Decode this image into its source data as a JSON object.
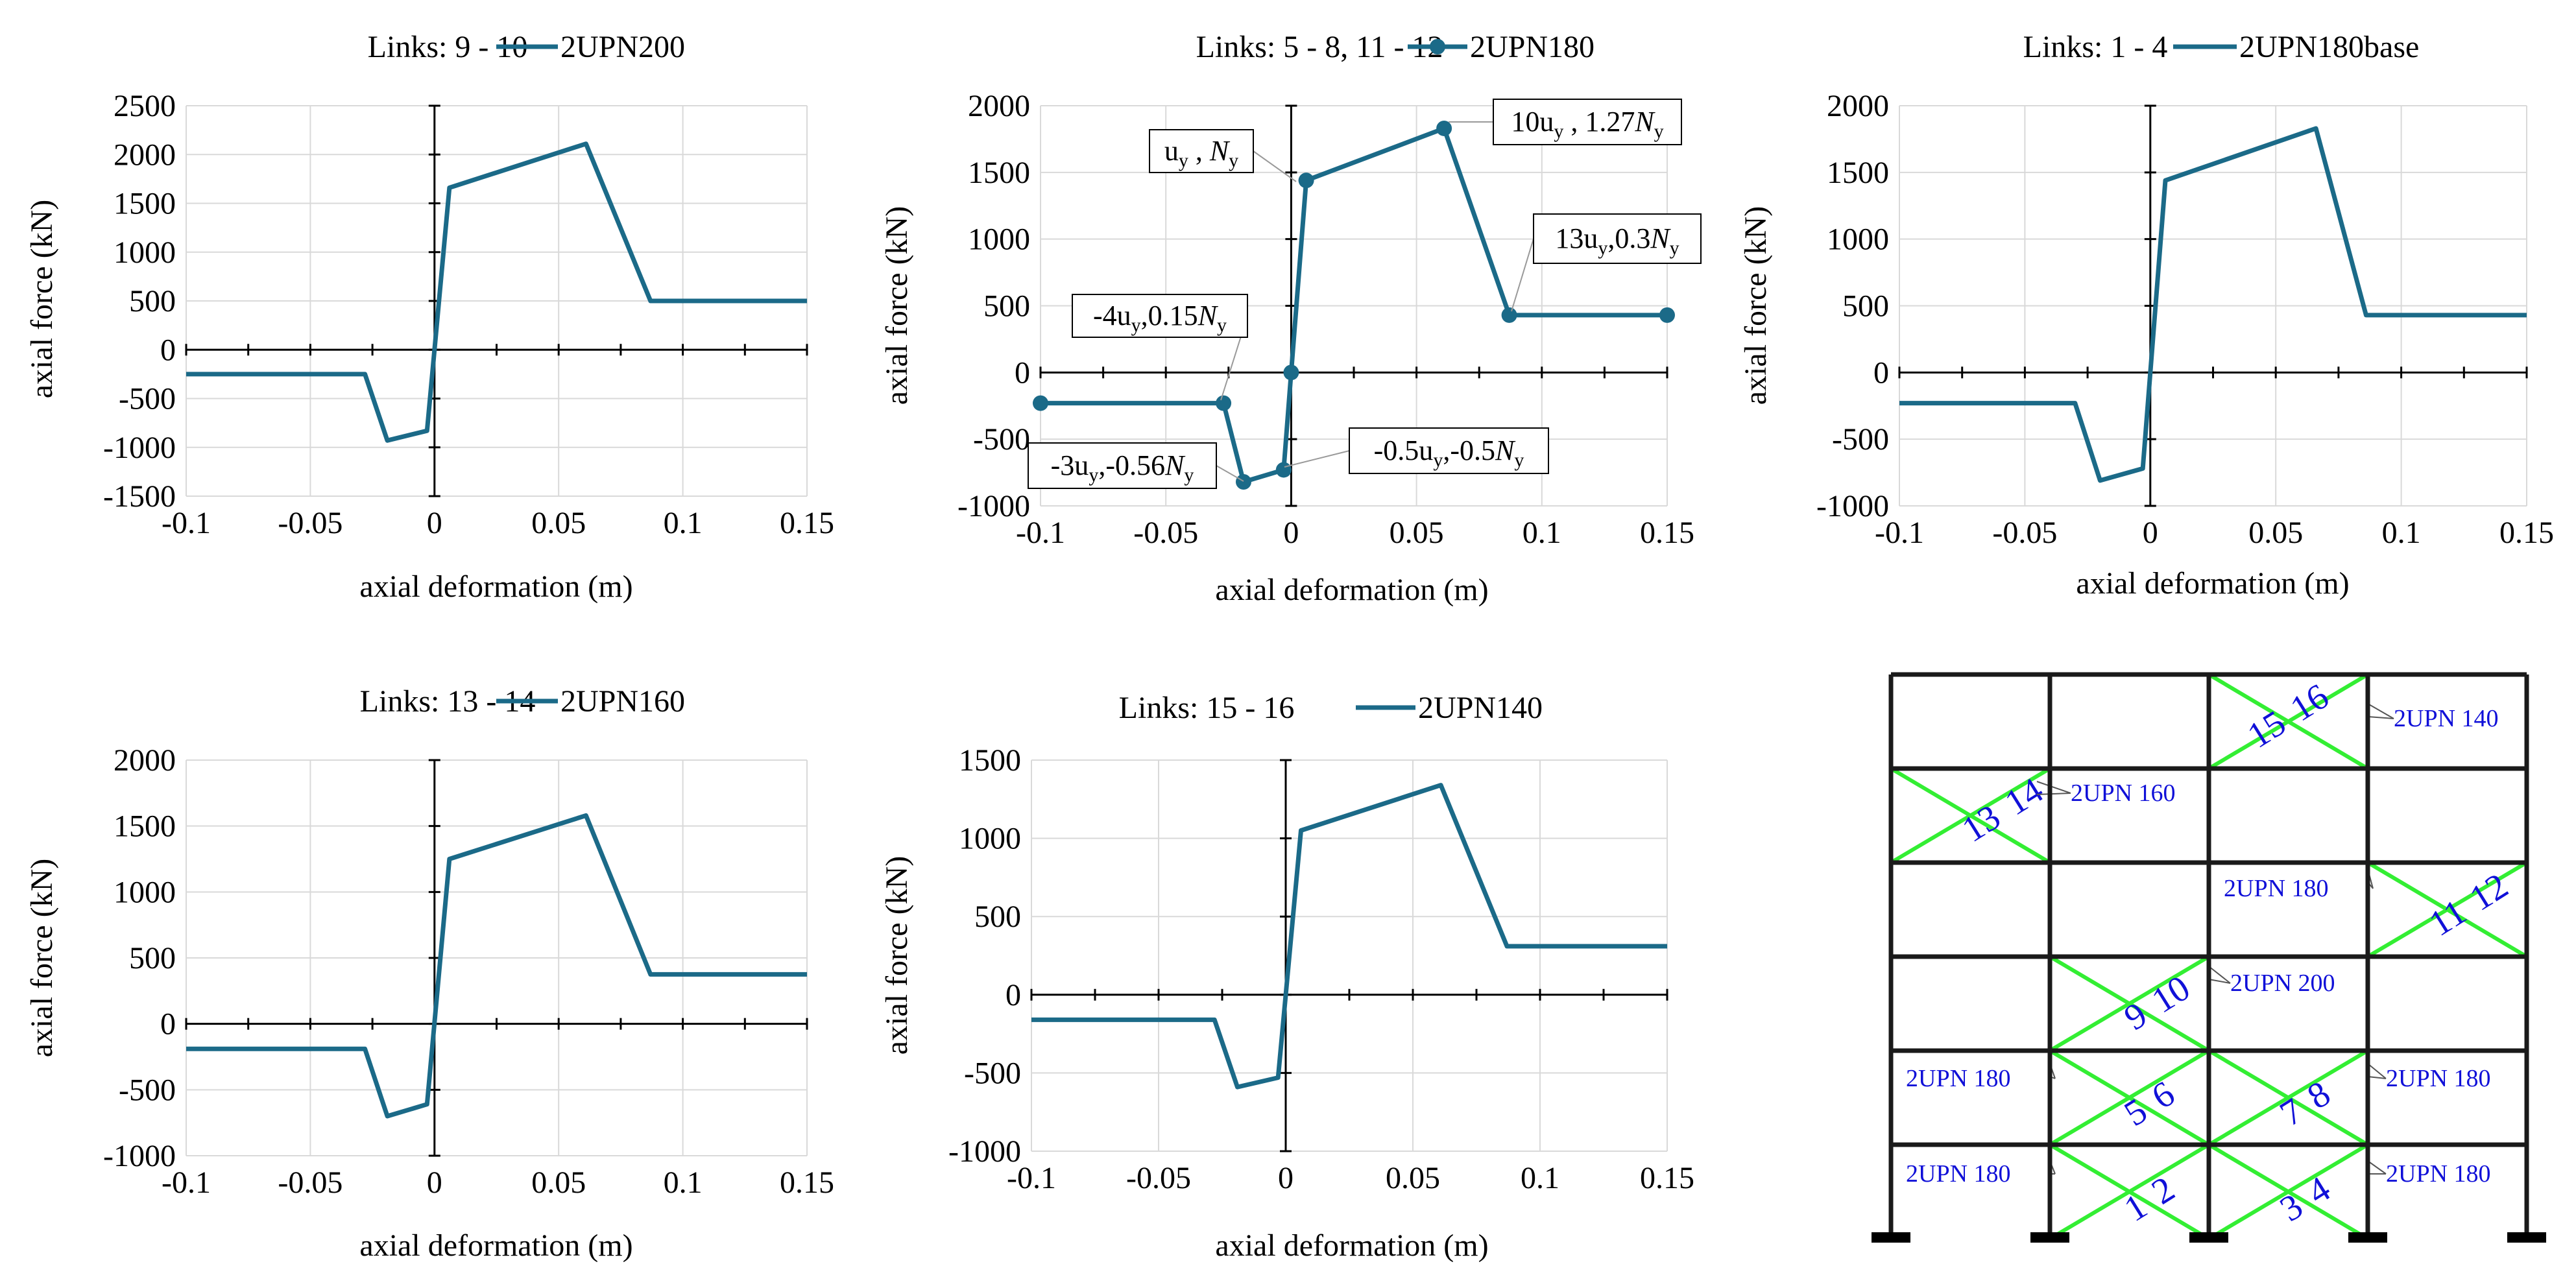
{
  "colors": {
    "series": "#1B6A88",
    "grid": "#d9d9d9",
    "axis": "#000000",
    "frame": "#1a1a1a",
    "brace": "#33ee33",
    "label_blue": "#1010d8",
    "callout_line": "#999999"
  },
  "chart_data": [
    {
      "id": "c1",
      "type": "line",
      "legend_prefix": "Links: 9 - 10",
      "series_name": "2UPN200",
      "markers": false,
      "xlabel": "axial deformation (m)",
      "ylabel": "axial force (kN)",
      "xlim": [
        -0.1,
        0.15
      ],
      "ylim": [
        -1500,
        2500
      ],
      "ytick_step": 500,
      "xticks": [
        "-0.1",
        "-0.05",
        "0",
        "0.05",
        "0.1",
        "0.15"
      ],
      "yticks": [
        "-1500",
        "-1000",
        "-500",
        "0",
        "500",
        "1000",
        "1500",
        "2000",
        "2500"
      ],
      "points": [
        [
          -0.1,
          -250
        ],
        [
          -0.028,
          -250
        ],
        [
          -0.019,
          -930
        ],
        [
          -0.003,
          -830
        ],
        [
          0.006,
          1660
        ],
        [
          0.061,
          2110
        ],
        [
          0.087,
          500
        ],
        [
          0.15,
          500
        ]
      ],
      "annotations": []
    },
    {
      "id": "c2",
      "type": "line",
      "legend_prefix": "Links: 5 - 8, 11 - 12",
      "series_name": "2UPN180",
      "markers": true,
      "xlabel": "axial deformation (m)",
      "ylabel": "axial force (kN)",
      "xlim": [
        -0.1,
        0.15
      ],
      "ylim": [
        -1000,
        2000
      ],
      "ytick_step": 500,
      "xticks": [
        "-0.1",
        "-0.05",
        "0",
        "0.05",
        "0.1",
        "0.15"
      ],
      "yticks": [
        "-1000",
        "-500",
        "0",
        "500",
        "1000",
        "1500",
        "2000"
      ],
      "points": [
        [
          -0.1,
          -230
        ],
        [
          -0.027,
          -230
        ],
        [
          -0.019,
          -820
        ],
        [
          -0.003,
          -730
        ],
        [
          0,
          0
        ],
        [
          0.006,
          1440
        ],
        [
          0.061,
          1830
        ],
        [
          0.087,
          430
        ],
        [
          0.15,
          430
        ]
      ],
      "annotations": [
        {
          "base": "u",
          "sub": "y",
          "mid": " , ",
          "base2": "N",
          "sub2": "y",
          "tail": ""
        },
        {
          "base": "10u",
          "sub": "y",
          "mid": " , 1.27",
          "base2": "N",
          "sub2": "y",
          "tail": ""
        },
        {
          "base": "13u",
          "sub": "y",
          "mid": ",0.3",
          "base2": "N",
          "sub2": "y",
          "tail": ""
        },
        {
          "base": "-4u",
          "sub": "y",
          "mid": ",0.15",
          "base2": "N",
          "sub2": "y",
          "tail": ""
        },
        {
          "base": "-3u",
          "sub": "y",
          "mid": ",-0.56",
          "base2": "N",
          "sub2": "y",
          "tail": ""
        },
        {
          "base": "-0.5u",
          "sub": "y",
          "mid": ",-0.5",
          "base2": "N",
          "sub2": "y",
          "tail": ""
        }
      ]
    },
    {
      "id": "c3",
      "type": "line",
      "legend_prefix": "Links: 1 - 4",
      "series_name": "2UPN180base",
      "markers": false,
      "xlabel": "axial deformation (m)",
      "ylabel": "axial force (kN)",
      "xlim": [
        -0.1,
        0.15
      ],
      "ylim": [
        -1000,
        2000
      ],
      "ytick_step": 500,
      "xticks": [
        "-0.1",
        "-0.05",
        "0",
        "0.05",
        "0.1",
        "0.15"
      ],
      "yticks": [
        "-1000",
        "-500",
        "0",
        "500",
        "1000",
        "1500",
        "2000"
      ],
      "points": [
        [
          -0.1,
          -230
        ],
        [
          -0.03,
          -230
        ],
        [
          -0.02,
          -810
        ],
        [
          -0.003,
          -720
        ],
        [
          0.006,
          1440
        ],
        [
          0.066,
          1830
        ],
        [
          0.086,
          430
        ],
        [
          0.15,
          430
        ]
      ],
      "annotations": []
    },
    {
      "id": "c4",
      "type": "line",
      "legend_prefix": "Links: 13 - 14",
      "series_name": "2UPN160",
      "markers": false,
      "xlabel": "axial deformation (m)",
      "ylabel": "axial force (kN)",
      "xlim": [
        -0.1,
        0.15
      ],
      "ylim": [
        -1000,
        2000
      ],
      "ytick_step": 500,
      "xticks": [
        "-0.1",
        "-0.05",
        "0",
        "0.05",
        "0.1",
        "0.15"
      ],
      "yticks": [
        "-1000",
        "-500",
        "0",
        "500",
        "1000",
        "1500",
        "2000"
      ],
      "points": [
        [
          -0.1,
          -190
        ],
        [
          -0.028,
          -190
        ],
        [
          -0.019,
          -700
        ],
        [
          -0.003,
          -610
        ],
        [
          0.006,
          1250
        ],
        [
          0.061,
          1580
        ],
        [
          0.087,
          375
        ],
        [
          0.15,
          375
        ]
      ],
      "annotations": []
    },
    {
      "id": "c5",
      "type": "line",
      "legend_prefix": "Links: 15 - 16",
      "series_name": "2UPN140",
      "markers": false,
      "xlabel": "axial deformation (m)",
      "ylabel": "axial force (kN)",
      "xlim": [
        -0.1,
        0.15
      ],
      "ylim": [
        -1000,
        1500
      ],
      "ytick_step": 500,
      "xticks": [
        "-0.1",
        "-0.05",
        "0",
        "0.05",
        "0.1",
        "0.15"
      ],
      "yticks": [
        "-1000",
        "-500",
        "0",
        "500",
        "1000",
        "1500"
      ],
      "points": [
        [
          -0.1,
          -160
        ],
        [
          -0.028,
          -160
        ],
        [
          -0.019,
          -590
        ],
        [
          -0.003,
          -530
        ],
        [
          0.006,
          1050
        ],
        [
          0.061,
          1340
        ],
        [
          0.087,
          310
        ],
        [
          0.15,
          310
        ]
      ],
      "annotations": []
    }
  ],
  "frame_diagram": {
    "bays": 4,
    "stories": 6,
    "braces": [
      {
        "story": 6,
        "bay": 3,
        "numbers": [
          "15",
          "16"
        ],
        "section": "2UPN 140"
      },
      {
        "story": 5,
        "bay": 1,
        "numbers": [
          "13",
          "14"
        ],
        "section": "2UPN 160"
      },
      {
        "story": 4,
        "bay": 4,
        "numbers": [
          "11",
          "12"
        ],
        "section": "2UPN 180"
      },
      {
        "story": 3,
        "bay": 2,
        "numbers": [
          "9",
          "10"
        ],
        "section": "2UPN 200"
      },
      {
        "story": 2,
        "bay": 2,
        "numbers": [
          "5",
          "6"
        ],
        "section": "2UPN 180"
      },
      {
        "story": 2,
        "bay": 3,
        "numbers": [
          "7",
          "8"
        ],
        "section": "2UPN 180"
      },
      {
        "story": 1,
        "bay": 2,
        "numbers": [
          "1",
          "2"
        ],
        "section": "2UPN 180"
      },
      {
        "story": 1,
        "bay": 3,
        "numbers": [
          "3",
          "4"
        ],
        "section": "2UPN 180"
      }
    ]
  }
}
